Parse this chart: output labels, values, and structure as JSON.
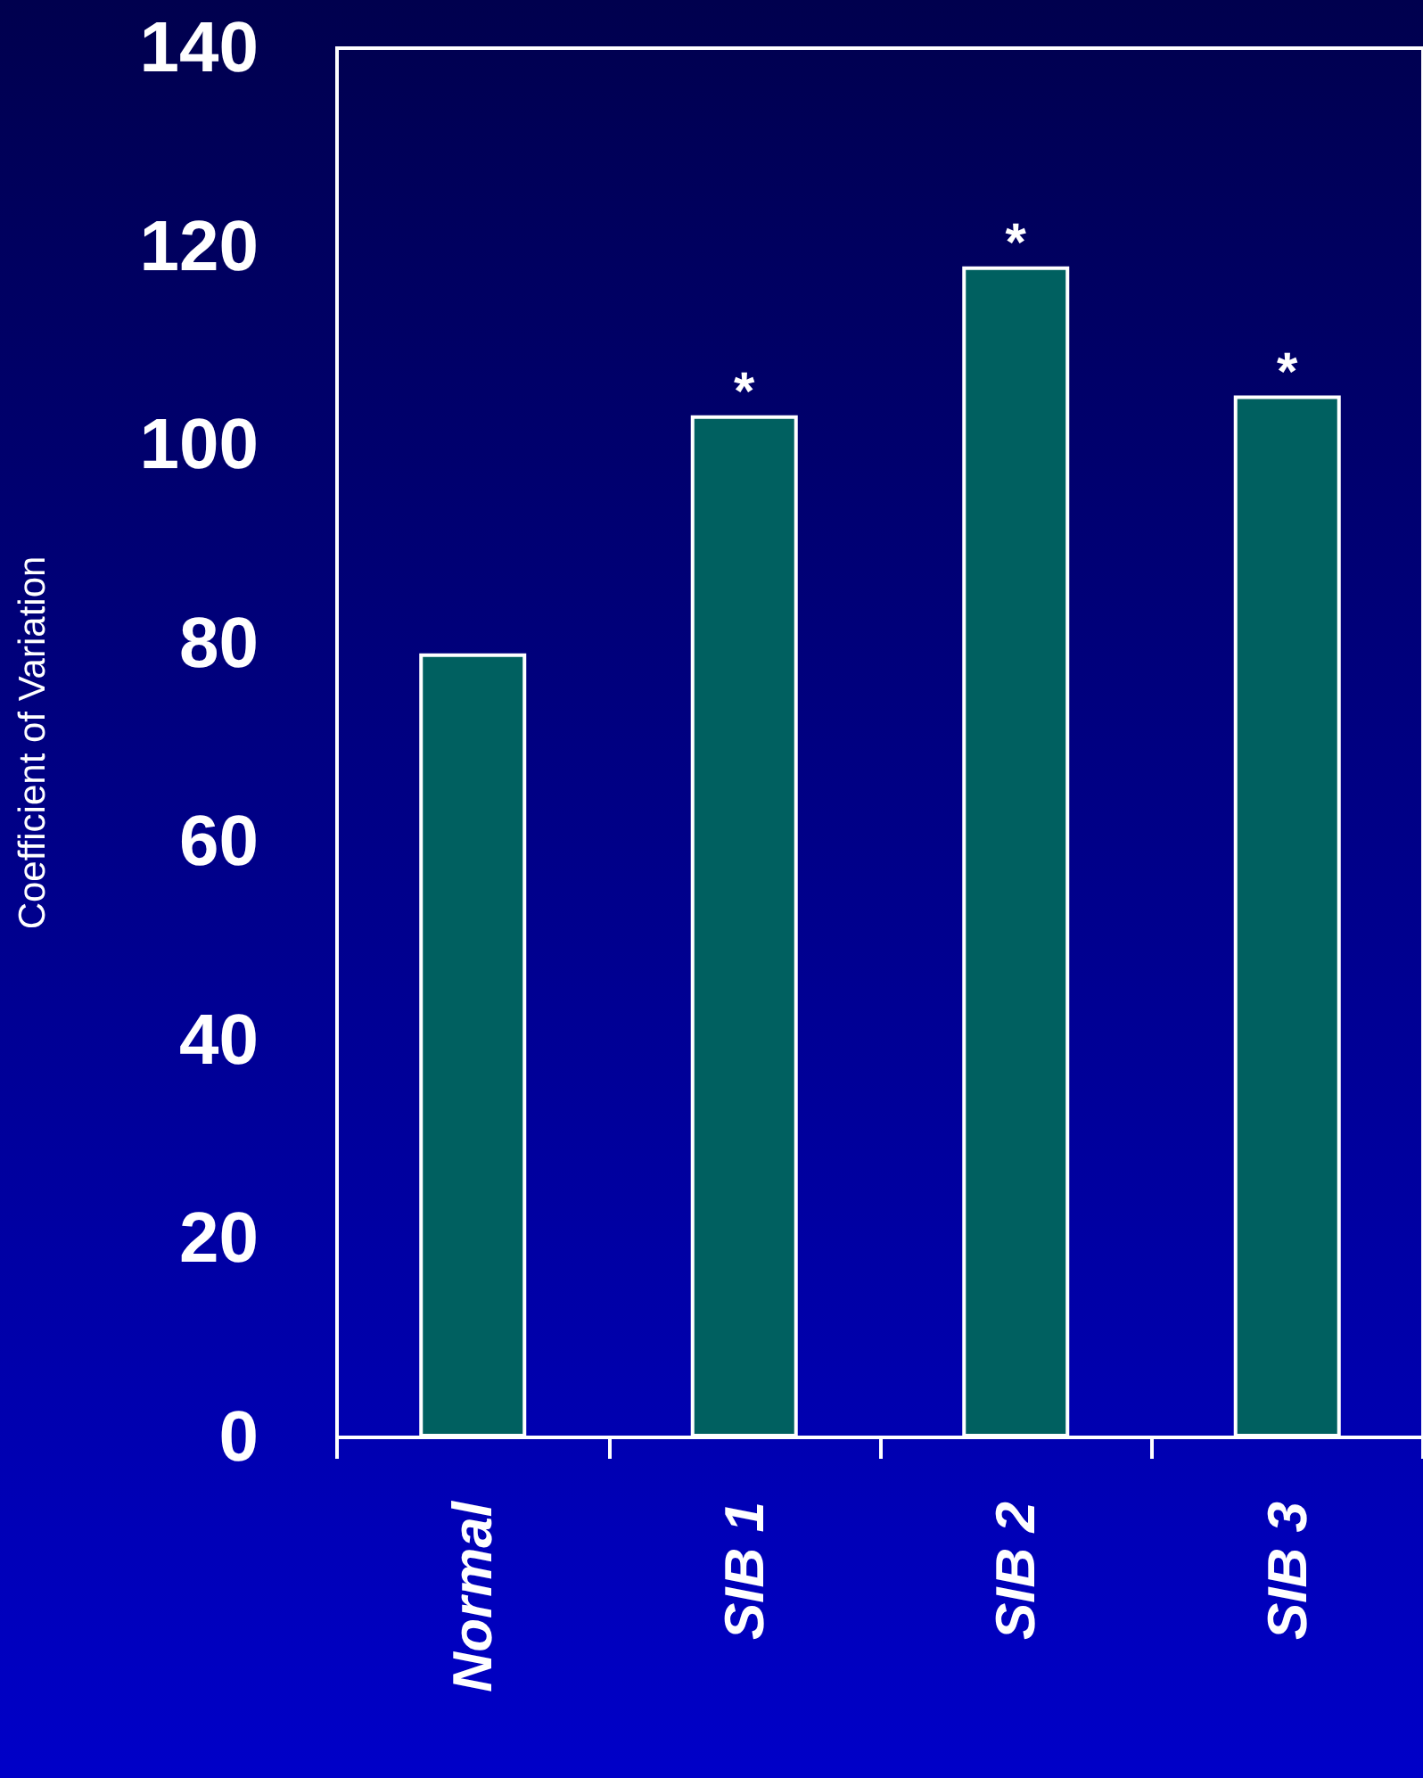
{
  "chart_data": {
    "type": "bar",
    "ylabel": "Coefficient of Variation",
    "categories": [
      "Normal",
      "SIB 1",
      "SIB 2",
      "SIB 3"
    ],
    "values": [
      79,
      103,
      118,
      105
    ],
    "color": "#006060",
    "ylim": [
      0,
      140
    ],
    "yticks": [
      0,
      20,
      40,
      60,
      80,
      100,
      120,
      140
    ],
    "grid": false,
    "annotations": [
      {
        "text": "*",
        "x": "SIB 1",
        "y": 103
      },
      {
        "text": "*",
        "x": "SIB 2",
        "y": 118
      },
      {
        "text": "*",
        "x": "SIB 3",
        "y": 105
      }
    ]
  }
}
